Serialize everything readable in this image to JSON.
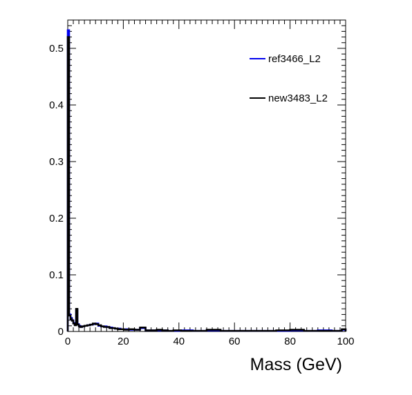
{
  "chart_data": {
    "type": "line",
    "title": "",
    "xlabel": "Mass (GeV)",
    "ylabel": "",
    "xlim": [
      0,
      100
    ],
    "ylim": [
      0,
      0.55
    ],
    "xticks": [
      0,
      20,
      40,
      60,
      80,
      100
    ],
    "xtick_labels": [
      "0",
      "20",
      "40",
      "60",
      "80",
      "100"
    ],
    "yticks": [
      0,
      0.1,
      0.2,
      0.3,
      0.4,
      0.5
    ],
    "ytick_labels": [
      "0",
      "0.1",
      "0.2",
      "0.3",
      "0.4",
      "0.5"
    ],
    "grid": false,
    "legend_position": "top-right",
    "x": [
      0.25,
      0.75,
      1.25,
      1.75,
      2.25,
      2.75,
      3.25,
      3.75,
      4.25,
      4.75,
      5.5,
      6.5,
      7.5,
      8.5,
      9.5,
      10.5,
      11.5,
      12.5,
      13.5,
      14.5,
      15.5,
      16.5,
      17.5,
      18.5,
      19.5,
      21,
      23,
      25,
      27,
      29,
      31,
      33,
      35,
      37,
      39,
      42.5,
      47.5,
      52.5,
      57.5,
      62.5,
      67.5,
      72.5,
      77.5,
      82.5,
      87.5,
      92.5,
      97.5,
      99.75
    ],
    "series": [
      {
        "name": "ref3466_L2",
        "color": "#0000ee",
        "values": [
          0.532,
          0.03,
          0.024,
          0.02,
          0.015,
          0.012,
          0.038,
          0.013,
          0.01,
          0.008,
          0.009,
          0.01,
          0.011,
          0.012,
          0.013,
          0.014,
          0.01,
          0.009,
          0.009,
          0.008,
          0.007,
          0.006,
          0.005,
          0.005,
          0.004,
          0.004,
          0.003,
          0.003,
          0.006,
          0.002,
          0.002,
          0.002,
          0.002,
          0.001,
          0.001,
          0.002,
          0.001,
          0.002,
          0.001,
          0.001,
          0.001,
          0.001,
          0.001,
          0.002,
          0.001,
          0.002,
          0.001,
          0.003
        ]
      },
      {
        "name": "new3483_L2",
        "color": "#000000",
        "values": [
          0.52,
          0.028,
          0.022,
          0.019,
          0.014,
          0.011,
          0.04,
          0.012,
          0.009,
          0.008,
          0.009,
          0.01,
          0.011,
          0.012,
          0.014,
          0.013,
          0.011,
          0.009,
          0.008,
          0.008,
          0.006,
          0.006,
          0.005,
          0.004,
          0.004,
          0.003,
          0.004,
          0.003,
          0.007,
          0.002,
          0.002,
          0.003,
          0.002,
          0.001,
          0.002,
          0.001,
          0.001,
          0.003,
          0.001,
          0.001,
          0.001,
          0.001,
          0.002,
          0.003,
          0.001,
          0.001,
          0.001,
          0.004
        ]
      }
    ]
  }
}
